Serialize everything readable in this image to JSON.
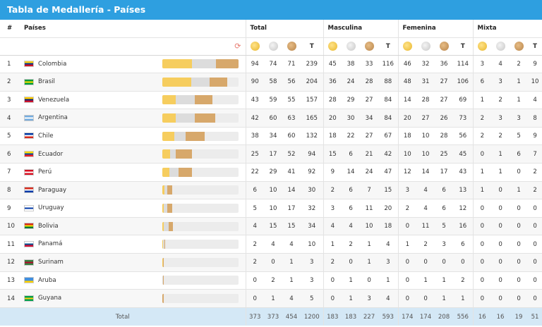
{
  "title": "Tabla de Medallería - Países",
  "headers": {
    "index": "#",
    "countries": "Países",
    "total": "Total",
    "masculina": "Masculina",
    "femenina": "Femenina",
    "mixta": "Mixta",
    "t_label": "T",
    "footer_label": "Total"
  },
  "icons": {
    "gold": "gold-medal-icon",
    "silver": "silver-medal-icon",
    "bronze": "bronze-medal-icon",
    "refresh": "refresh-icon"
  },
  "colors": {
    "header_bar": "#2e9fe0",
    "gold_bar": "#f6cd5e",
    "silver_bar": "#dcdcdc",
    "bronze_bar": "#d7a86b",
    "footer_bg": "#d4e8f6"
  },
  "chart_data": {
    "type": "bar",
    "categories": [
      "Colombia",
      "Brasil",
      "Venezuela",
      "Argentina",
      "Chile",
      "Ecuador",
      "Perú",
      "Paraguay",
      "Uruguay",
      "Bolivia",
      "Panamá",
      "Surinam",
      "Aruba",
      "Guyana"
    ],
    "series": [
      {
        "name": "gold",
        "values": [
          94,
          90,
          43,
          42,
          38,
          25,
          22,
          6,
          5,
          4,
          2,
          2,
          0,
          0
        ]
      },
      {
        "name": "silver",
        "values": [
          74,
          58,
          59,
          60,
          34,
          17,
          29,
          10,
          10,
          15,
          4,
          0,
          2,
          1
        ]
      },
      {
        "name": "bronze",
        "values": [
          71,
          56,
          55,
          63,
          60,
          52,
          41,
          14,
          17,
          15,
          4,
          1,
          1,
          4
        ]
      }
    ],
    "xlim": [
      0,
      239
    ]
  },
  "rows": [
    {
      "idx": "1",
      "name": "Colombia",
      "flag": [
        "#fcd116",
        "#003893",
        "#ce1126"
      ],
      "total": [
        "94",
        "74",
        "71",
        "239"
      ],
      "masc": [
        "45",
        "38",
        "33",
        "116"
      ],
      "fem": [
        "46",
        "32",
        "36",
        "114"
      ],
      "mixta": [
        "3",
        "4",
        "2",
        "9"
      ]
    },
    {
      "idx": "2",
      "name": "Brasil",
      "flag": [
        "#009c3b",
        "#ffdf00",
        "#009c3b"
      ],
      "total": [
        "90",
        "58",
        "56",
        "204"
      ],
      "masc": [
        "36",
        "24",
        "28",
        "88"
      ],
      "fem": [
        "48",
        "31",
        "27",
        "106"
      ],
      "mixta": [
        "6",
        "3",
        "1",
        "10"
      ]
    },
    {
      "idx": "3",
      "name": "Venezuela",
      "flag": [
        "#ffcc00",
        "#00247d",
        "#cf142b"
      ],
      "total": [
        "43",
        "59",
        "55",
        "157"
      ],
      "masc": [
        "28",
        "29",
        "27",
        "84"
      ],
      "fem": [
        "14",
        "28",
        "27",
        "69"
      ],
      "mixta": [
        "1",
        "2",
        "1",
        "4"
      ]
    },
    {
      "idx": "4",
      "name": "Argentina",
      "flag": [
        "#74acdf",
        "#ffffff",
        "#74acdf"
      ],
      "total": [
        "42",
        "60",
        "63",
        "165"
      ],
      "masc": [
        "20",
        "30",
        "34",
        "84"
      ],
      "fem": [
        "20",
        "27",
        "26",
        "73"
      ],
      "mixta": [
        "2",
        "3",
        "3",
        "8"
      ]
    },
    {
      "idx": "5",
      "name": "Chile",
      "flag": [
        "#0039a6",
        "#ffffff",
        "#d52b1e"
      ],
      "total": [
        "38",
        "34",
        "60",
        "132"
      ],
      "masc": [
        "18",
        "22",
        "27",
        "67"
      ],
      "fem": [
        "18",
        "10",
        "28",
        "56"
      ],
      "mixta": [
        "2",
        "2",
        "5",
        "9"
      ]
    },
    {
      "idx": "6",
      "name": "Ecuador",
      "flag": [
        "#ffdd00",
        "#034ea2",
        "#ed1c24"
      ],
      "total": [
        "25",
        "17",
        "52",
        "94"
      ],
      "masc": [
        "15",
        "6",
        "21",
        "42"
      ],
      "fem": [
        "10",
        "10",
        "25",
        "45"
      ],
      "mixta": [
        "0",
        "1",
        "6",
        "7"
      ]
    },
    {
      "idx": "7",
      "name": "Perú",
      "flag": [
        "#d91023",
        "#ffffff",
        "#d91023"
      ],
      "total": [
        "22",
        "29",
        "41",
        "92"
      ],
      "masc": [
        "9",
        "14",
        "24",
        "47"
      ],
      "fem": [
        "12",
        "14",
        "17",
        "43"
      ],
      "mixta": [
        "1",
        "1",
        "0",
        "2"
      ]
    },
    {
      "idx": "8",
      "name": "Paraguay",
      "flag": [
        "#d52b1e",
        "#ffffff",
        "#0038a8"
      ],
      "total": [
        "6",
        "10",
        "14",
        "30"
      ],
      "masc": [
        "2",
        "6",
        "7",
        "15"
      ],
      "fem": [
        "3",
        "4",
        "6",
        "13"
      ],
      "mixta": [
        "1",
        "0",
        "1",
        "2"
      ]
    },
    {
      "idx": "9",
      "name": "Uruguay",
      "flag": [
        "#ffffff",
        "#0038a8",
        "#ffffff"
      ],
      "total": [
        "5",
        "10",
        "17",
        "32"
      ],
      "masc": [
        "3",
        "6",
        "11",
        "20"
      ],
      "fem": [
        "2",
        "4",
        "6",
        "12"
      ],
      "mixta": [
        "0",
        "0",
        "0",
        "0"
      ]
    },
    {
      "idx": "10",
      "name": "Bolivia",
      "flag": [
        "#d52b1e",
        "#f9e300",
        "#007934"
      ],
      "total": [
        "4",
        "15",
        "15",
        "34"
      ],
      "masc": [
        "4",
        "4",
        "10",
        "18"
      ],
      "fem": [
        "0",
        "11",
        "5",
        "16"
      ],
      "mixta": [
        "0",
        "0",
        "0",
        "0"
      ]
    },
    {
      "idx": "11",
      "name": "Panamá",
      "flag": [
        "#ffffff",
        "#005293",
        "#d21034"
      ],
      "total": [
        "2",
        "4",
        "4",
        "10"
      ],
      "masc": [
        "1",
        "2",
        "1",
        "4"
      ],
      "fem": [
        "1",
        "2",
        "3",
        "6"
      ],
      "mixta": [
        "0",
        "0",
        "0",
        "0"
      ]
    },
    {
      "idx": "12",
      "name": "Surinam",
      "flag": [
        "#377e3f",
        "#b40a2d",
        "#377e3f"
      ],
      "total": [
        "2",
        "0",
        "1",
        "3"
      ],
      "masc": [
        "2",
        "0",
        "1",
        "3"
      ],
      "fem": [
        "0",
        "0",
        "0",
        "0"
      ],
      "mixta": [
        "0",
        "0",
        "0",
        "0"
      ]
    },
    {
      "idx": "13",
      "name": "Aruba",
      "flag": [
        "#418fde",
        "#418fde",
        "#ffd100"
      ],
      "total": [
        "0",
        "2",
        "1",
        "3"
      ],
      "masc": [
        "0",
        "1",
        "0",
        "1"
      ],
      "fem": [
        "0",
        "1",
        "1",
        "2"
      ],
      "mixta": [
        "0",
        "0",
        "0",
        "0"
      ]
    },
    {
      "idx": "14",
      "name": "Guyana",
      "flag": [
        "#009e49",
        "#fcd116",
        "#009e49"
      ],
      "total": [
        "0",
        "1",
        "4",
        "5"
      ],
      "masc": [
        "0",
        "1",
        "3",
        "4"
      ],
      "fem": [
        "0",
        "0",
        "1",
        "1"
      ],
      "mixta": [
        "0",
        "0",
        "0",
        "0"
      ]
    }
  ],
  "footer": {
    "total": [
      "373",
      "373",
      "454",
      "1200"
    ],
    "masc": [
      "183",
      "183",
      "227",
      "593"
    ],
    "fem": [
      "174",
      "174",
      "208",
      "556"
    ],
    "mixta": [
      "16",
      "16",
      "19",
      "51"
    ]
  }
}
